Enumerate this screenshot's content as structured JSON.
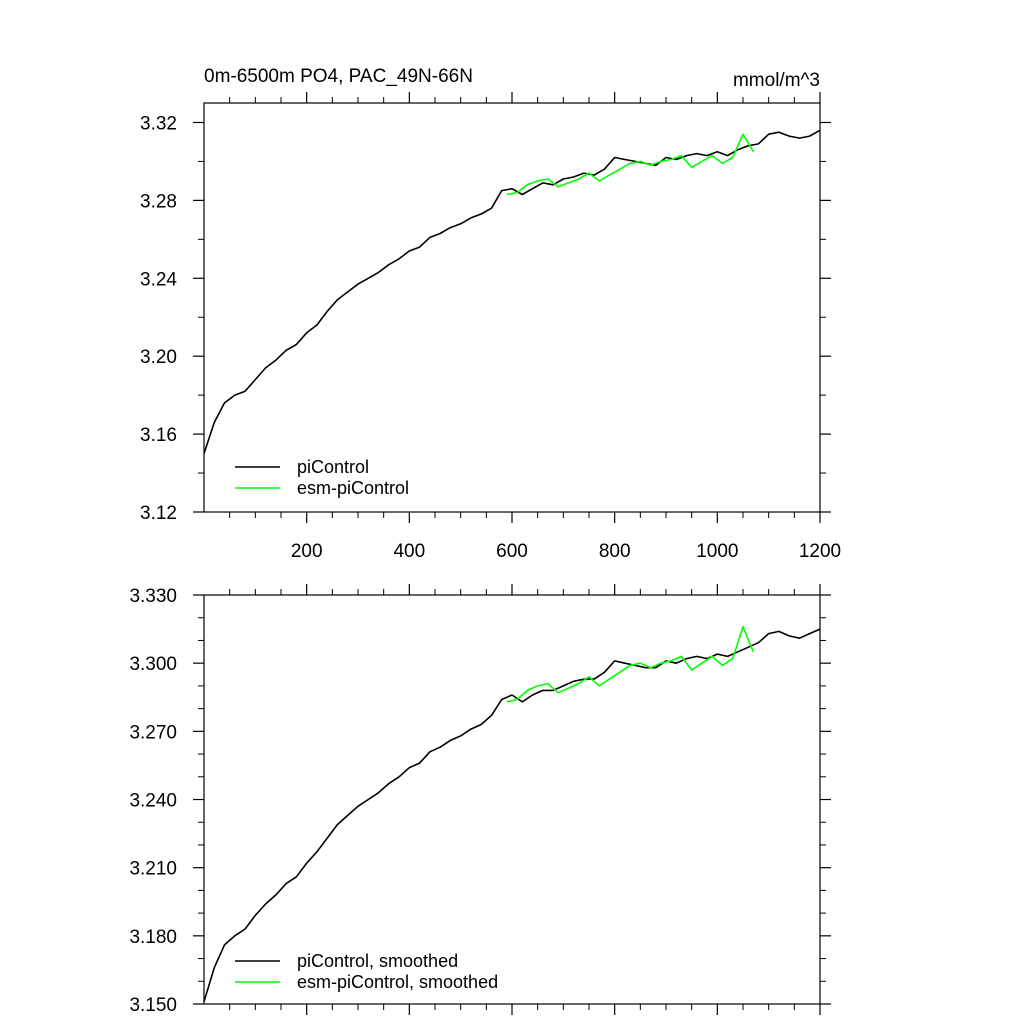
{
  "chart_data": [
    {
      "type": "line",
      "title": "0m-6500m PO4, PAC_49N-66N",
      "units": "mmol/m^3",
      "xlim": [
        0,
        1200
      ],
      "ylim": [
        3.12,
        3.33
      ],
      "x_ticks": [
        200,
        400,
        600,
        800,
        1000,
        1200
      ],
      "x_tick_labels": [
        "200",
        "400",
        "600",
        "800",
        "1000",
        "1200"
      ],
      "y_ticks": [
        3.12,
        3.16,
        3.2,
        3.24,
        3.28,
        3.32
      ],
      "y_tick_labels": [
        "3.12",
        "3.16",
        "3.20",
        "3.24",
        "3.28",
        "3.32"
      ],
      "legend_position": "bottom-left",
      "grid": false,
      "series": [
        {
          "name": "piControl",
          "color": "#000000",
          "x": [
            0,
            20,
            40,
            60,
            80,
            100,
            120,
            140,
            160,
            180,
            200,
            220,
            240,
            260,
            280,
            300,
            320,
            340,
            360,
            380,
            400,
            420,
            440,
            460,
            480,
            500,
            520,
            540,
            560,
            580,
            600,
            620,
            640,
            660,
            680,
            700,
            720,
            740,
            760,
            780,
            800,
            820,
            840,
            860,
            880,
            900,
            920,
            940,
            960,
            980,
            1000,
            1020,
            1040,
            1060,
            1080,
            1100,
            1120,
            1140,
            1160,
            1180,
            1200
          ],
          "y": [
            3.15,
            3.166,
            3.176,
            3.18,
            3.182,
            3.188,
            3.194,
            3.198,
            3.203,
            3.206,
            3.212,
            3.216,
            3.223,
            3.229,
            3.233,
            3.237,
            3.24,
            3.243,
            3.247,
            3.25,
            3.254,
            3.256,
            3.261,
            3.263,
            3.266,
            3.268,
            3.271,
            3.273,
            3.276,
            3.285,
            3.286,
            3.283,
            3.286,
            3.289,
            3.288,
            3.291,
            3.292,
            3.294,
            3.293,
            3.296,
            3.302,
            3.301,
            3.3,
            3.299,
            3.298,
            3.302,
            3.301,
            3.303,
            3.304,
            3.303,
            3.305,
            3.303,
            3.306,
            3.308,
            3.309,
            3.314,
            3.315,
            3.313,
            3.312,
            3.313,
            3.316
          ]
        },
        {
          "name": "esm-piControl",
          "color": "#00ff00",
          "x": [
            590,
            610,
            630,
            650,
            670,
            690,
            710,
            730,
            750,
            770,
            790,
            810,
            830,
            850,
            870,
            890,
            910,
            930,
            950,
            970,
            990,
            1010,
            1030,
            1050,
            1070
          ],
          "y": [
            3.283,
            3.284,
            3.288,
            3.29,
            3.291,
            3.287,
            3.289,
            3.291,
            3.294,
            3.29,
            3.293,
            3.296,
            3.299,
            3.3,
            3.298,
            3.3,
            3.301,
            3.303,
            3.297,
            3.3,
            3.303,
            3.299,
            3.302,
            3.314,
            3.305
          ]
        }
      ]
    },
    {
      "type": "line",
      "title": "",
      "xlim": [
        0,
        1200
      ],
      "ylim": [
        3.15,
        3.33
      ],
      "x_ticks": [
        200,
        400,
        600,
        800,
        1000,
        1200
      ],
      "x_tick_labels": [],
      "y_ticks": [
        3.15,
        3.18,
        3.21,
        3.24,
        3.27,
        3.3,
        3.33
      ],
      "y_tick_labels": [
        "3.150",
        "3.180",
        "3.210",
        "3.240",
        "3.270",
        "3.300",
        "3.330"
      ],
      "legend_position": "bottom-left",
      "grid": false,
      "series": [
        {
          "name": "piControl, smoothed",
          "color": "#000000",
          "x": [
            0,
            20,
            40,
            60,
            80,
            100,
            120,
            140,
            160,
            180,
            200,
            220,
            240,
            260,
            280,
            300,
            320,
            340,
            360,
            380,
            400,
            420,
            440,
            460,
            480,
            500,
            520,
            540,
            560,
            580,
            600,
            620,
            640,
            660,
            680,
            700,
            720,
            740,
            760,
            780,
            800,
            820,
            840,
            860,
            880,
            900,
            920,
            940,
            960,
            980,
            1000,
            1020,
            1040,
            1060,
            1080,
            1100,
            1120,
            1140,
            1160,
            1180,
            1200
          ],
          "y": [
            3.151,
            3.166,
            3.176,
            3.18,
            3.183,
            3.189,
            3.194,
            3.198,
            3.203,
            3.206,
            3.212,
            3.217,
            3.223,
            3.229,
            3.233,
            3.237,
            3.24,
            3.243,
            3.247,
            3.25,
            3.254,
            3.256,
            3.261,
            3.263,
            3.266,
            3.268,
            3.271,
            3.273,
            3.277,
            3.284,
            3.286,
            3.283,
            3.286,
            3.288,
            3.288,
            3.29,
            3.292,
            3.293,
            3.293,
            3.296,
            3.301,
            3.3,
            3.299,
            3.298,
            3.298,
            3.301,
            3.3,
            3.302,
            3.303,
            3.302,
            3.304,
            3.303,
            3.305,
            3.307,
            3.309,
            3.313,
            3.314,
            3.312,
            3.311,
            3.313,
            3.315
          ]
        },
        {
          "name": "esm-piControl, smoothed",
          "color": "#00ff00",
          "x": [
            590,
            610,
            630,
            650,
            670,
            690,
            710,
            730,
            750,
            770,
            790,
            810,
            830,
            850,
            870,
            890,
            910,
            930,
            950,
            970,
            990,
            1010,
            1030,
            1050,
            1070
          ],
          "y": [
            3.283,
            3.284,
            3.288,
            3.29,
            3.291,
            3.287,
            3.289,
            3.291,
            3.294,
            3.29,
            3.293,
            3.296,
            3.299,
            3.3,
            3.298,
            3.3,
            3.301,
            3.303,
            3.297,
            3.3,
            3.303,
            3.299,
            3.302,
            3.316,
            3.305
          ]
        }
      ]
    }
  ]
}
